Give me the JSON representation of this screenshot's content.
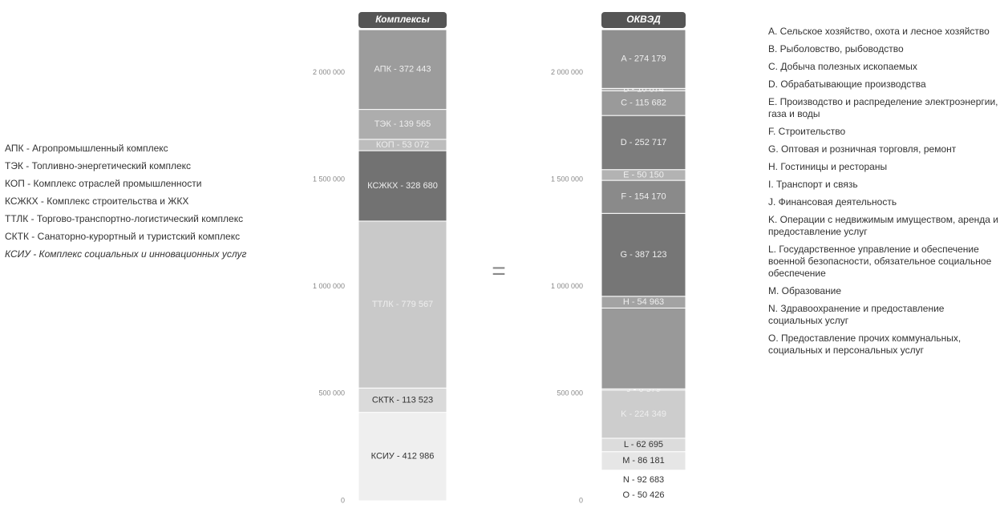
{
  "chart_data": [
    {
      "type": "stacked_bar",
      "title": "Комплексы",
      "values": [
        372443,
        139565,
        53072,
        328680,
        779567,
        113523,
        412986
      ],
      "value_labels": [
        "АПК - 372 443",
        "ТЭК - 139 565",
        "КОП - 53 072",
        "КСЖКХ - 328 680",
        "ТТЛК - 779 567",
        "СКТК - 113 523",
        "КСИУ - 412 986"
      ],
      "colors": [
        "#9c9c9c",
        "#adadad",
        "#bdbdbd",
        "#727272",
        "#c9c9c9",
        "#dadada",
        "#efefef"
      ],
      "ylim": [
        0,
        2200000
      ],
      "yticks": [
        0,
        {
          "value": 500000,
          "label": "500 000"
        },
        {
          "value": 1000000,
          "label": "1 000 000"
        },
        {
          "value": 1500000,
          "label": "1 500 000"
        },
        {
          "value": 2000000,
          "label": "2 000 000"
        }
      ],
      "legend": [
        "АПК - Агропромышленный комплекс",
        "ТЭК - Топливно-энергетический комплекс",
        "КОП - Комплекс отраслей промышленности",
        "КСЖКХ - Комплекс строительства и ЖКХ",
        "ТТЛК - Торгово-транспортно-логистический комплекс",
        "СКТК - Санаторно-курортный и туристский комплекс",
        "КСИУ - Комплекс социальных и инновационных услуг"
      ]
    },
    {
      "type": "stacked_bar",
      "title": "ОКВЭД",
      "values": [
        274179,
        10874,
        115682,
        252717,
        50150,
        154170,
        387123,
        54963,
        377265,
        6379,
        224349,
        62695,
        86181,
        92683,
        50426
      ],
      "value_labels": [
        "A - 274 179",
        "B - 10 874",
        "C - 115 682",
        "D - 252 717",
        "E - 50 150",
        "F - 154 170",
        "G - 387 123",
        "H - 54 963",
        null,
        "J - 6 379",
        "K - 224 349",
        "L - 62 695",
        "M - 86 181",
        "N - 92 683",
        "O - 50 426"
      ],
      "colors": [
        "#8e8e8e",
        "#a6a6a6",
        "#9a9a9a",
        "#7c7c7c",
        "#b3b3b3",
        "#8a8a8a",
        "#767676",
        "#a3a3a3",
        "#999999",
        "#b8b8b8",
        "#cdcdcd",
        "#dcdcdc",
        "#e6e6e6",
        "#ffffff",
        "#ffffff"
      ],
      "ylim": [
        0,
        2200000
      ],
      "yticks": [
        0,
        {
          "value": 500000,
          "label": "500 000"
        },
        {
          "value": 1000000,
          "label": "1 000 000"
        },
        {
          "value": 1500000,
          "label": "1 500 000"
        },
        {
          "value": 2000000,
          "label": "2 000 000"
        }
      ],
      "legend": [
        "A. Сельское хозяйство, охота и лесное хозяйство",
        "B. Рыболовство, рыбоводство",
        "C. Добыча полезных ископаемых",
        "D. Обрабатывающие производства",
        "E. Производство и распределение электроэнергии, газа и воды",
        "F. Строительство",
        "G. Оптовая и розничная торговля, ремонт",
        "H. Гостиницы и рестораны",
        "I. Транспорт и связь",
        "J. Финансовая деятельность",
        "K. Операции с недвижимым имуществом, аренда и предоставление услуг",
        "L. Государственное управление и обеспечение военной безопасности, обязательное социальное обеспечение",
        "M. Образование",
        "N. Здравоохранение и предоставление социальных услуг",
        "O. Предоставление прочих коммунальных, социальных и персональных услуг"
      ]
    }
  ]
}
